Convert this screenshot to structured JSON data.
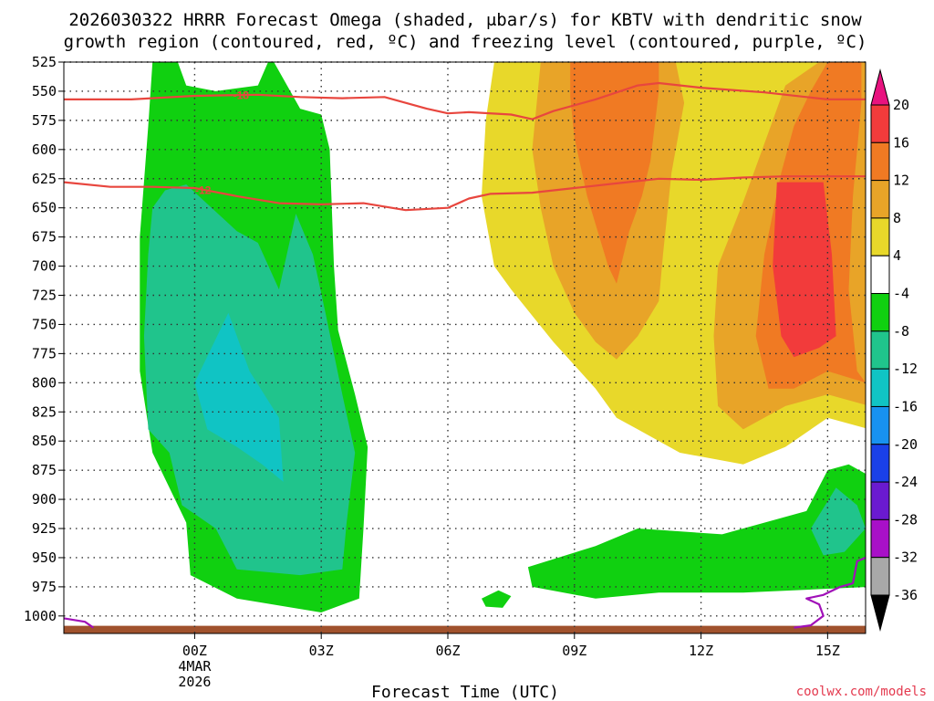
{
  "chart_data": {
    "type": "time-height contour",
    "title_line1": "2026030322 HRRR Forecast Omega (shaded, μbar/s) for KBTV with dendritic snow",
    "title_line2": "growth region (contoured, red, ºC) and freezing level (contoured, purple, ºC)",
    "xlabel": "Forecast Time (UTC)",
    "credit": "coolwx.com/models",
    "y_axis": {
      "unit": "hPa",
      "range": [
        525,
        1015
      ],
      "ticks": [
        525,
        550,
        575,
        600,
        625,
        650,
        675,
        700,
        725,
        750,
        775,
        800,
        825,
        850,
        875,
        900,
        925,
        950,
        975,
        1000
      ]
    },
    "x_axis": {
      "unit": "hours from 00Z 4 Mar 2026",
      "range": [
        -3.1,
        15.9
      ],
      "ticks": [
        {
          "hour": 0,
          "label": "00Z",
          "sub1": "4MAR",
          "sub2": "2026"
        },
        {
          "hour": 3,
          "label": "03Z"
        },
        {
          "hour": 6,
          "label": "06Z"
        },
        {
          "hour": 9,
          "label": "09Z"
        },
        {
          "hour": 12,
          "label": "12Z"
        },
        {
          "hour": 15,
          "label": "15Z"
        }
      ]
    },
    "colorbar": {
      "labels": [
        "20",
        "16",
        "12",
        "8",
        "4",
        "-4",
        "-8",
        "-12",
        "-16",
        "-20",
        "-24",
        "-28",
        "-32",
        "-36"
      ],
      "colors": [
        "#e8137f",
        "#f23b3b",
        "#f07a23",
        "#e8a428",
        "#e8d82a",
        "#ffffff",
        "#10d010",
        "#20c48c",
        "#10c4c4",
        "#1892f0",
        "#1a40e8",
        "#6a1ad0",
        "#a810c8",
        "#a8a8a8",
        "#000000"
      ]
    },
    "shaded_regions": [
      {
        "name": "downward-motion-main",
        "level": -4,
        "color": "#10d010",
        "points": [
          [
            -1.0,
            525
          ],
          [
            -0.4,
            525
          ],
          [
            -0.2,
            545
          ],
          [
            0.5,
            550
          ],
          [
            1.5,
            545
          ],
          [
            1.8,
            520
          ],
          [
            2.5,
            565
          ],
          [
            3.0,
            570
          ],
          [
            3.2,
            600
          ],
          [
            3.3,
            700
          ],
          [
            3.4,
            755
          ],
          [
            3.8,
            810
          ],
          [
            4.1,
            855
          ],
          [
            4.0,
            925
          ],
          [
            3.9,
            985
          ],
          [
            3.0,
            997
          ],
          [
            1.0,
            985
          ],
          [
            -0.1,
            965
          ],
          [
            -0.2,
            920
          ],
          [
            -1.0,
            860
          ],
          [
            -1.3,
            790
          ],
          [
            -1.3,
            675
          ],
          [
            -1.1,
            580
          ]
        ]
      },
      {
        "name": "downward-motion-inner",
        "level": -8,
        "color": "#20c48c",
        "points": [
          [
            -1.0,
            650
          ],
          [
            -0.7,
            635
          ],
          [
            -0.2,
            630
          ],
          [
            1.0,
            670
          ],
          [
            1.5,
            680
          ],
          [
            2.0,
            720
          ],
          [
            2.4,
            655
          ],
          [
            2.8,
            690
          ],
          [
            3.1,
            740
          ],
          [
            3.5,
            810
          ],
          [
            3.8,
            860
          ],
          [
            3.6,
            920
          ],
          [
            3.5,
            960
          ],
          [
            2.5,
            965
          ],
          [
            1.0,
            960
          ],
          [
            0.5,
            925
          ],
          [
            -0.3,
            905
          ],
          [
            -0.6,
            860
          ],
          [
            -1.1,
            840
          ],
          [
            -1.2,
            760
          ],
          [
            -1.1,
            690
          ]
        ]
      },
      {
        "name": "downward-motion-core",
        "level": -12,
        "color": "#10c4c4",
        "points": [
          [
            0.0,
            800
          ],
          [
            0.8,
            740
          ],
          [
            1.3,
            790
          ],
          [
            2.0,
            830
          ],
          [
            2.1,
            885
          ],
          [
            1.6,
            870
          ],
          [
            1.0,
            855
          ],
          [
            0.3,
            840
          ]
        ]
      },
      {
        "name": "downward-motion-low",
        "level": -4,
        "color": "#10d010",
        "points": [
          [
            7.9,
            958
          ],
          [
            9.5,
            940
          ],
          [
            10.5,
            925
          ],
          [
            12.5,
            930
          ],
          [
            13.5,
            920
          ],
          [
            14.5,
            910
          ],
          [
            15.0,
            875
          ],
          [
            15.5,
            870
          ],
          [
            16.0,
            880
          ],
          [
            16.0,
            975
          ],
          [
            13.0,
            980
          ],
          [
            11.0,
            980
          ],
          [
            9.5,
            985
          ],
          [
            8.0,
            975
          ]
        ]
      },
      {
        "name": "downward-motion-low-core",
        "level": -8,
        "color": "#20c48c",
        "points": [
          [
            14.6,
            925
          ],
          [
            15.2,
            890
          ],
          [
            15.7,
            905
          ],
          [
            15.9,
            925
          ],
          [
            15.4,
            945
          ],
          [
            14.9,
            948
          ]
        ]
      },
      {
        "name": "downward-motion-speck",
        "level": -4,
        "color": "#10d010",
        "points": [
          [
            6.8,
            985
          ],
          [
            7.2,
            978
          ],
          [
            7.5,
            983
          ],
          [
            7.3,
            993
          ],
          [
            6.9,
            992
          ]
        ]
      },
      {
        "name": "upward-motion-main",
        "level": 4,
        "color": "#e8d82a",
        "points": [
          [
            7.1,
            525
          ],
          [
            15.9,
            525
          ],
          [
            16.0,
            560
          ],
          [
            16.0,
            840
          ],
          [
            15.0,
            830
          ],
          [
            14.0,
            855
          ],
          [
            13.0,
            870
          ],
          [
            11.5,
            860
          ],
          [
            10.5,
            840
          ],
          [
            10.0,
            830
          ],
          [
            9.5,
            805
          ],
          [
            8.5,
            765
          ],
          [
            7.5,
            720
          ],
          [
            7.1,
            700
          ],
          [
            6.8,
            640
          ],
          [
            6.9,
            575
          ]
        ]
      },
      {
        "name": "upward-motion-inner",
        "level": 8,
        "color": "#e8a428",
        "points": [
          [
            8.2,
            525
          ],
          [
            11.4,
            525
          ],
          [
            11.6,
            560
          ],
          [
            11.3,
            620
          ],
          [
            11.1,
            690
          ],
          [
            11.0,
            730
          ],
          [
            10.5,
            760
          ],
          [
            10.0,
            780
          ],
          [
            9.5,
            765
          ],
          [
            9.0,
            740
          ],
          [
            8.5,
            700
          ],
          [
            8.2,
            650
          ],
          [
            8.0,
            600
          ]
        ]
      },
      {
        "name": "upward-motion-east",
        "level": 8,
        "color": "#e8a428",
        "points": [
          [
            14.8,
            525
          ],
          [
            16.0,
            525
          ],
          [
            16.0,
            820
          ],
          [
            15.0,
            810
          ],
          [
            14.0,
            820
          ],
          [
            13.0,
            840
          ],
          [
            12.4,
            820
          ],
          [
            12.3,
            760
          ],
          [
            12.4,
            700
          ],
          [
            13.0,
            645
          ],
          [
            13.6,
            585
          ],
          [
            14.0,
            545
          ]
        ]
      },
      {
        "name": "upward-motion-west-core",
        "level": 12,
        "color": "#f07a23",
        "points": [
          [
            8.9,
            525
          ],
          [
            11.0,
            525
          ],
          [
            11.0,
            550
          ],
          [
            10.8,
            610
          ],
          [
            10.6,
            640
          ],
          [
            10.3,
            670
          ],
          [
            10.0,
            715
          ],
          [
            9.8,
            700
          ],
          [
            9.3,
            640
          ],
          [
            9.0,
            590
          ],
          [
            8.9,
            555
          ]
        ]
      },
      {
        "name": "upward-motion-east-core",
        "level": 12,
        "color": "#f07a23",
        "points": [
          [
            15.0,
            525
          ],
          [
            15.8,
            525
          ],
          [
            15.8,
            560
          ],
          [
            15.6,
            640
          ],
          [
            15.5,
            720
          ],
          [
            15.7,
            790
          ],
          [
            15.9,
            800
          ],
          [
            15.0,
            790
          ],
          [
            14.2,
            805
          ],
          [
            13.6,
            805
          ],
          [
            13.3,
            760
          ],
          [
            13.5,
            690
          ],
          [
            13.9,
            620
          ],
          [
            14.2,
            580
          ],
          [
            14.6,
            550
          ]
        ]
      },
      {
        "name": "upward-motion-peak",
        "level": 16,
        "color": "#f23b3b",
        "points": [
          [
            13.8,
            628
          ],
          [
            14.9,
            628
          ],
          [
            15.1,
            690
          ],
          [
            15.2,
            760
          ],
          [
            14.8,
            770
          ],
          [
            14.2,
            778
          ],
          [
            13.9,
            760
          ],
          [
            13.7,
            700
          ]
        ]
      }
    ],
    "isotherms": [
      {
        "name": "minus-18-isotherm",
        "label": "-18",
        "label_hour": 1.1,
        "color": "#e8463e",
        "points": [
          [
            -3.1,
            557
          ],
          [
            -1.5,
            557
          ],
          [
            0.0,
            554
          ],
          [
            1.5,
            553
          ],
          [
            2.5,
            555
          ],
          [
            3.5,
            556
          ],
          [
            4.5,
            555
          ],
          [
            5.5,
            565
          ],
          [
            6.0,
            569
          ],
          [
            6.5,
            568
          ],
          [
            7.5,
            570
          ],
          [
            8.0,
            574
          ],
          [
            8.5,
            567
          ],
          [
            9.5,
            557
          ],
          [
            10.5,
            545
          ],
          [
            11.0,
            543
          ],
          [
            12.0,
            547
          ],
          [
            13.5,
            551
          ],
          [
            14.5,
            555
          ],
          [
            15.0,
            557
          ],
          [
            15.9,
            557
          ]
        ]
      },
      {
        "name": "minus-12-isotherm",
        "label": "-12",
        "label_hour": 0.2,
        "color": "#e8463e",
        "points": [
          [
            -3.1,
            628
          ],
          [
            -2.0,
            632
          ],
          [
            -1.0,
            632
          ],
          [
            0.0,
            633
          ],
          [
            1.0,
            640
          ],
          [
            2.0,
            646
          ],
          [
            3.0,
            647
          ],
          [
            4.0,
            646
          ],
          [
            5.0,
            652
          ],
          [
            6.0,
            650
          ],
          [
            6.5,
            642
          ],
          [
            7.0,
            638
          ],
          [
            8.0,
            637
          ],
          [
            9.0,
            633
          ],
          [
            10.0,
            629
          ],
          [
            11.0,
            625
          ],
          [
            12.0,
            626
          ],
          [
            13.0,
            624
          ],
          [
            14.0,
            623
          ],
          [
            15.0,
            623
          ],
          [
            15.9,
            623
          ]
        ]
      }
    ],
    "freezing_level": [
      {
        "name": "freezing-level-west",
        "label": "0",
        "color": "#a010b8",
        "points": [
          [
            -3.1,
            1002
          ],
          [
            -2.6,
            1005
          ],
          [
            -2.4,
            1010
          ]
        ]
      },
      {
        "name": "freezing-level-east",
        "label": "0",
        "color": "#a010b8",
        "points": [
          [
            14.2,
            1010
          ],
          [
            14.6,
            1008
          ],
          [
            14.9,
            1000
          ],
          [
            14.8,
            990
          ],
          [
            14.5,
            985
          ],
          [
            14.9,
            982
          ],
          [
            15.3,
            975
          ],
          [
            15.6,
            972
          ],
          [
            15.7,
            953
          ],
          [
            15.9,
            950
          ]
        ]
      }
    ],
    "terrain": {
      "name": "ground-surface",
      "color": "#a0522d",
      "top_pressure": 1010
    }
  }
}
